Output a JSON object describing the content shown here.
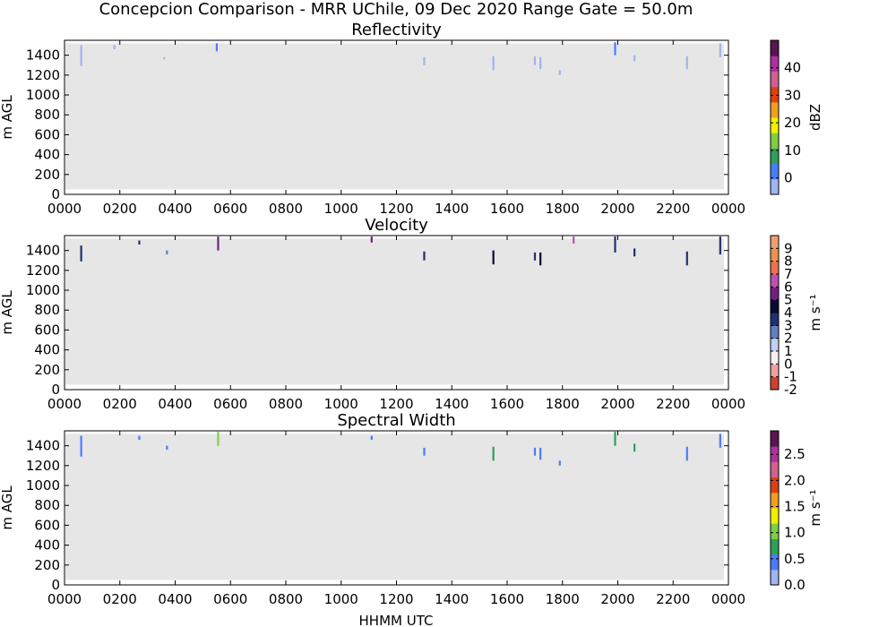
{
  "figure": {
    "suptitle": "Concepcion Comparison - MRR UChile, 09 Dec 2020 Range Gate = 50.0m",
    "xlabel": "HHMM UTC",
    "background_color": "#e6e6e6"
  },
  "chart_data": [
    {
      "type": "heatmap",
      "title": "Reflectivity",
      "ylabel": "m AGL",
      "xlim": [
        0,
        2400
      ],
      "ylim": [
        0,
        1550
      ],
      "x_ticks": [
        "0000",
        "0200",
        "0400",
        "0600",
        "0800",
        "1000",
        "1200",
        "1400",
        "1600",
        "1800",
        "2000",
        "2200",
        "0000"
      ],
      "y_ticks": [
        "0",
        "200",
        "400",
        "600",
        "800",
        "1000",
        "1200",
        "1400"
      ],
      "colorbar": {
        "label": "dBZ",
        "range": [
          -6,
          50
        ],
        "ticks": [
          "0",
          "10",
          "20",
          "30",
          "40"
        ],
        "tick_values": [
          0,
          10,
          20,
          30,
          40
        ],
        "colors": [
          "#a0b4f0",
          "#4a7cff",
          "#2fa05a",
          "#7fd040",
          "#f0f000",
          "#f0a020",
          "#e04010",
          "#d06090",
          "#b030a0",
          "#5a1450"
        ]
      },
      "data_streaks": [
        {
          "time": 60,
          "top": 1500,
          "bottom": 1290,
          "color": "#a0b4f0"
        },
        {
          "time": 180,
          "top": 1500,
          "bottom": 1460,
          "color": "#a0b4f0"
        },
        {
          "time": 360,
          "top": 1380,
          "bottom": 1360,
          "color": "#a0b4f0"
        },
        {
          "time": 550,
          "top": 1520,
          "bottom": 1440,
          "color": "#4a7cff"
        },
        {
          "time": 1300,
          "top": 1380,
          "bottom": 1300,
          "color": "#a0b4f0"
        },
        {
          "time": 1550,
          "top": 1390,
          "bottom": 1250,
          "color": "#a0b4f0"
        },
        {
          "time": 1700,
          "top": 1390,
          "bottom": 1300,
          "color": "#a0b4f0"
        },
        {
          "time": 1720,
          "top": 1380,
          "bottom": 1260,
          "color": "#a0b4f0"
        },
        {
          "time": 1790,
          "top": 1250,
          "bottom": 1200,
          "color": "#a0b4f0"
        },
        {
          "time": 1990,
          "top": 1530,
          "bottom": 1400,
          "color": "#4a7cff"
        },
        {
          "time": 2060,
          "top": 1400,
          "bottom": 1340,
          "color": "#a0b4f0"
        },
        {
          "time": 2250,
          "top": 1390,
          "bottom": 1260,
          "color": "#a0b4f0"
        },
        {
          "time": 2370,
          "top": 1520,
          "bottom": 1380,
          "color": "#a0b4f0"
        }
      ]
    },
    {
      "type": "heatmap",
      "title": "Velocity",
      "ylabel": "m AGL",
      "xlim": [
        0,
        2400
      ],
      "ylim": [
        0,
        1550
      ],
      "x_ticks": [
        "0000",
        "0200",
        "0400",
        "0600",
        "0800",
        "1000",
        "1200",
        "1400",
        "1600",
        "1800",
        "2000",
        "2200",
        "0000"
      ],
      "y_ticks": [
        "0",
        "200",
        "400",
        "600",
        "800",
        "1000",
        "1200",
        "1400"
      ],
      "colorbar": {
        "label": "m s⁻¹",
        "range": [
          -2,
          10
        ],
        "ticks": [
          "-2",
          "-1",
          "0",
          "1",
          "2",
          "3",
          "4",
          "5",
          "6",
          "7",
          "8",
          "9"
        ],
        "tick_values": [
          -2,
          -1,
          0,
          1,
          2,
          3,
          4,
          5,
          6,
          7,
          8,
          9
        ],
        "colors": [
          "#d04030",
          "#f0a0a0",
          "#f8f0f0",
          "#c0d0f0",
          "#6080c0",
          "#203070",
          "#0a0a30",
          "#702080",
          "#c050b0",
          "#f07050",
          "#f09050",
          "#f0a070"
        ]
      },
      "data_streaks": [
        {
          "time": 60,
          "top": 1450,
          "bottom": 1290,
          "color": "#203070"
        },
        {
          "time": 270,
          "top": 1500,
          "bottom": 1460,
          "color": "#203070"
        },
        {
          "time": 370,
          "top": 1400,
          "bottom": 1360,
          "color": "#6080c0"
        },
        {
          "time": 555,
          "top": 1540,
          "bottom": 1400,
          "color": "#702080"
        },
        {
          "time": 1110,
          "top": 1540,
          "bottom": 1480,
          "color": "#702080"
        },
        {
          "time": 1300,
          "top": 1390,
          "bottom": 1300,
          "color": "#203070"
        },
        {
          "time": 1550,
          "top": 1400,
          "bottom": 1260,
          "color": "#0a0a30"
        },
        {
          "time": 1700,
          "top": 1380,
          "bottom": 1300,
          "color": "#203070"
        },
        {
          "time": 1720,
          "top": 1380,
          "bottom": 1250,
          "color": "#0a0a30"
        },
        {
          "time": 1840,
          "top": 1540,
          "bottom": 1470,
          "color": "#c050b0"
        },
        {
          "time": 1990,
          "top": 1540,
          "bottom": 1380,
          "color": "#203070"
        },
        {
          "time": 2060,
          "top": 1420,
          "bottom": 1340,
          "color": "#203070"
        },
        {
          "time": 2250,
          "top": 1390,
          "bottom": 1250,
          "color": "#203070"
        },
        {
          "time": 2370,
          "top": 1540,
          "bottom": 1360,
          "color": "#203070"
        }
      ]
    },
    {
      "type": "heatmap",
      "title": "Spectral Width",
      "ylabel": "m AGL",
      "xlim": [
        0,
        2400
      ],
      "ylim": [
        0,
        1550
      ],
      "x_ticks": [
        "0000",
        "0200",
        "0400",
        "0600",
        "0800",
        "1000",
        "1200",
        "1400",
        "1600",
        "1800",
        "2000",
        "2200",
        "0000"
      ],
      "y_ticks": [
        "0",
        "200",
        "400",
        "600",
        "800",
        "1000",
        "1200",
        "1400"
      ],
      "colorbar": {
        "label": "m s⁻¹",
        "range": [
          0,
          2.95
        ],
        "ticks": [
          "0.0",
          "0.5",
          "1.0",
          "1.5",
          "2.0",
          "2.5"
        ],
        "tick_values": [
          0.0,
          0.5,
          1.0,
          1.5,
          2.0,
          2.5
        ],
        "colors": [
          "#a0b4f0",
          "#4a7cff",
          "#2fa05a",
          "#7fd040",
          "#f0f000",
          "#f0a020",
          "#e04010",
          "#d06090",
          "#b030a0",
          "#5a1450"
        ]
      },
      "data_streaks": [
        {
          "time": 60,
          "top": 1500,
          "bottom": 1290,
          "color": "#4a7cff"
        },
        {
          "time": 270,
          "top": 1500,
          "bottom": 1460,
          "color": "#4a7cff"
        },
        {
          "time": 370,
          "top": 1400,
          "bottom": 1360,
          "color": "#4a7cff"
        },
        {
          "time": 555,
          "top": 1540,
          "bottom": 1400,
          "color": "#7fd040"
        },
        {
          "time": 1110,
          "top": 1500,
          "bottom": 1460,
          "color": "#4a7cff"
        },
        {
          "time": 1300,
          "top": 1380,
          "bottom": 1300,
          "color": "#4a7cff"
        },
        {
          "time": 1550,
          "top": 1390,
          "bottom": 1250,
          "color": "#2fa05a"
        },
        {
          "time": 1700,
          "top": 1380,
          "bottom": 1300,
          "color": "#4a7cff"
        },
        {
          "time": 1720,
          "top": 1380,
          "bottom": 1260,
          "color": "#4a7cff"
        },
        {
          "time": 1790,
          "top": 1250,
          "bottom": 1200,
          "color": "#4a7cff"
        },
        {
          "time": 1990,
          "top": 1540,
          "bottom": 1400,
          "color": "#2fa05a"
        },
        {
          "time": 2060,
          "top": 1420,
          "bottom": 1340,
          "color": "#2fa05a"
        },
        {
          "time": 2250,
          "top": 1390,
          "bottom": 1250,
          "color": "#4a7cff"
        },
        {
          "time": 2370,
          "top": 1520,
          "bottom": 1380,
          "color": "#4a7cff"
        }
      ]
    }
  ]
}
